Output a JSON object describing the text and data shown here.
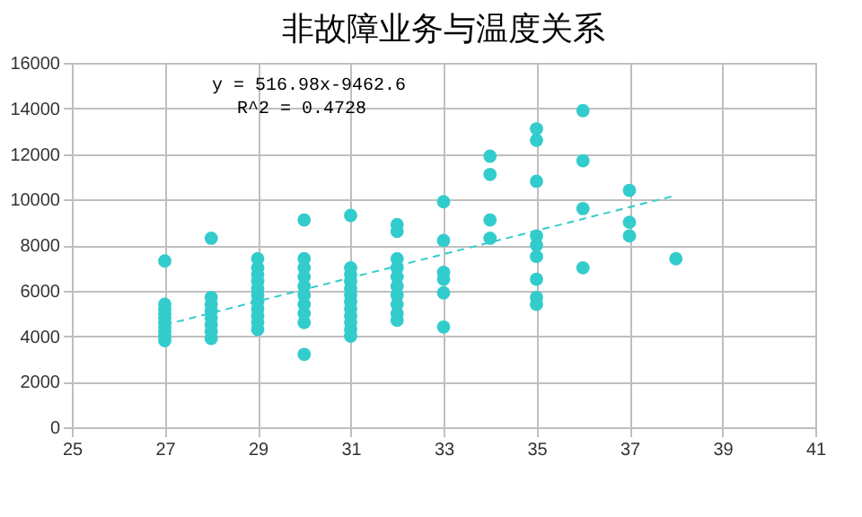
{
  "chart_data": {
    "type": "scatter",
    "title": "非故障业务与温度关系",
    "annotations": [
      "y = 516.98x-9462.6",
      "R^2 = 0.4728"
    ],
    "series": [
      {
        "color": "#33cccc",
        "x": [
          27,
          27,
          27,
          27,
          27,
          27,
          27,
          27,
          27,
          27,
          28,
          28,
          28,
          28,
          28,
          28,
          28,
          28,
          29,
          29,
          29,
          29,
          29,
          29,
          29,
          29,
          29,
          29,
          29,
          30,
          30,
          30,
          30,
          30,
          30,
          30,
          30,
          30,
          30,
          31,
          31,
          31,
          31,
          31,
          31,
          31,
          31,
          31,
          31,
          31,
          31,
          32,
          32,
          32,
          32,
          32,
          32,
          32,
          32,
          32,
          32,
          33,
          33,
          33,
          33,
          33,
          33,
          34,
          34,
          34,
          34,
          35,
          35,
          35,
          35,
          35,
          35,
          35,
          35,
          35,
          36,
          36,
          36,
          36,
          37,
          37,
          37,
          38
        ],
        "values": [
          7300,
          3800,
          4000,
          4200,
          4400,
          4600,
          4800,
          5000,
          5200,
          5400,
          8300,
          3900,
          4200,
          4500,
          4800,
          5100,
          5400,
          5700,
          4300,
          4600,
          4900,
          5200,
          5500,
          5800,
          6100,
          6400,
          6700,
          7000,
          7400,
          9100,
          3200,
          4600,
          5000,
          5400,
          5800,
          6200,
          6600,
          7000,
          7400,
          9300,
          4000,
          4300,
          4600,
          4900,
          5200,
          5500,
          5800,
          6100,
          6400,
          6700,
          7000,
          8600,
          8900,
          4700,
          5000,
          5400,
          5800,
          6200,
          6600,
          7000,
          7400,
          9900,
          8200,
          6800,
          6500,
          5900,
          4400,
          11900,
          11100,
          9100,
          8300,
          13100,
          12600,
          10800,
          8400,
          8000,
          7500,
          6500,
          5700,
          5400,
          13900,
          11700,
          9600,
          7000,
          10400,
          9000,
          8400,
          7400
        ]
      },
      {
        "type": "line",
        "color": "#33cccc",
        "line_style": "dashed",
        "marker": "none",
        "x": [
          27,
          38
        ],
        "values": [
          4500,
          10180
        ]
      }
    ],
    "xlim": [
      25,
      41
    ],
    "xticks": [
      25,
      27,
      29,
      31,
      33,
      35,
      37,
      39,
      41
    ],
    "ylim": [
      0,
      16000
    ],
    "yticks": [
      0,
      2000,
      4000,
      6000,
      8000,
      10000,
      12000,
      14000,
      16000
    ],
    "grid": true,
    "marker": "circle"
  }
}
